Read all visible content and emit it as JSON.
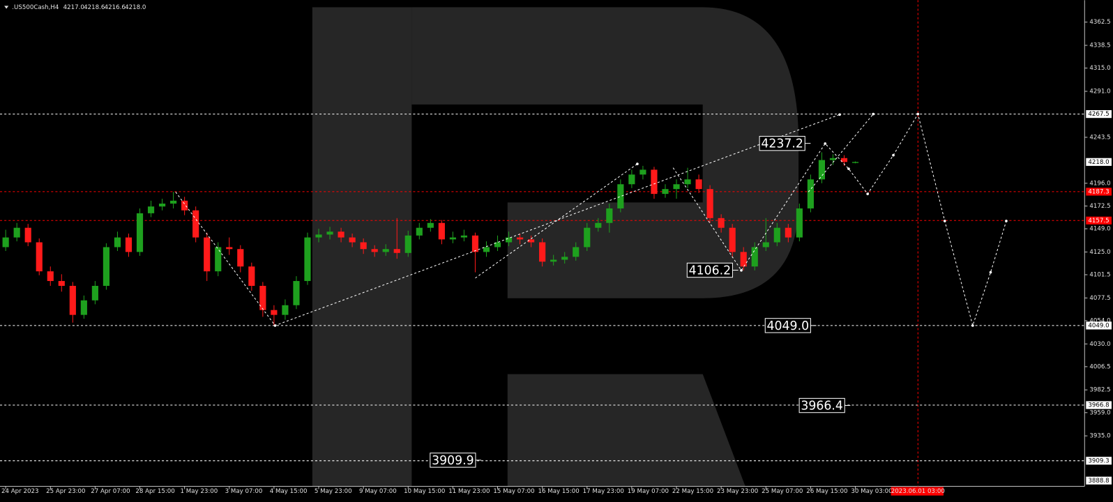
{
  "chart_data": {
    "type": "candlestick",
    "header": {
      "symbol": ".US500Cash,H4",
      "ohlc": [
        "4217.0",
        "4218.6",
        "4216.6",
        "4218.0"
      ]
    },
    "candles": [
      [
        4130,
        4148,
        4126,
        4140
      ],
      [
        4140,
        4155,
        4136,
        4150
      ],
      [
        4150,
        4154,
        4131,
        4135
      ],
      [
        4135,
        4139,
        4101,
        4105
      ],
      [
        4105,
        4110,
        4090,
        4095
      ],
      [
        4095,
        4102,
        4084,
        4090
      ],
      [
        4090,
        4094,
        4052,
        4060
      ],
      [
        4060,
        4080,
        4056,
        4075
      ],
      [
        4075,
        4095,
        4071,
        4090
      ],
      [
        4090,
        4134,
        4086,
        4130
      ],
      [
        4130,
        4146,
        4126,
        4140
      ],
      [
        4140,
        4144,
        4120,
        4125
      ],
      [
        4125,
        4170,
        4121,
        4165
      ],
      [
        4165,
        4178,
        4161,
        4172
      ],
      [
        4172,
        4180,
        4168,
        4175
      ],
      [
        4175,
        4187,
        4170,
        4178
      ],
      [
        4178,
        4182,
        4163,
        4168
      ],
      [
        4168,
        4172,
        4135,
        4140
      ],
      [
        4140,
        4145,
        4095,
        4105
      ],
      [
        4105,
        4135,
        4100,
        4130
      ],
      [
        4130,
        4140,
        4122,
        4128
      ],
      [
        4128,
        4132,
        4104,
        4110
      ],
      [
        4110,
        4114,
        4085,
        4090
      ],
      [
        4090,
        4094,
        4058,
        4065
      ],
      [
        4065,
        4070,
        4049,
        4060
      ],
      [
        4060,
        4076,
        4055,
        4070
      ],
      [
        4070,
        4100,
        4066,
        4095
      ],
      [
        4095,
        4145,
        4091,
        4140
      ],
      [
        4140,
        4149,
        4135,
        4143
      ],
      [
        4143,
        4151,
        4138,
        4146
      ],
      [
        4146,
        4150,
        4135,
        4140
      ],
      [
        4140,
        4144,
        4130,
        4135
      ],
      [
        4135,
        4139,
        4123,
        4128
      ],
      [
        4128,
        4132,
        4120,
        4125
      ],
      [
        4125,
        4133,
        4121,
        4128
      ],
      [
        4128,
        4160,
        4118,
        4124
      ],
      [
        4124,
        4147,
        4120,
        4142
      ],
      [
        4142,
        4155,
        4138,
        4150
      ],
      [
        4150,
        4159,
        4146,
        4155
      ],
      [
        4155,
        4158,
        4133,
        4138
      ],
      [
        4138,
        4146,
        4134,
        4140
      ],
      [
        4140,
        4148,
        4136,
        4142
      ],
      [
        4142,
        4145,
        4104,
        4125
      ],
      [
        4125,
        4136,
        4120,
        4130
      ],
      [
        4130,
        4142,
        4126,
        4135
      ],
      [
        4135,
        4146,
        4131,
        4140
      ],
      [
        4140,
        4144,
        4133,
        4138
      ],
      [
        4138,
        4142,
        4130,
        4135
      ],
      [
        4135,
        4139,
        4110,
        4115
      ],
      [
        4115,
        4122,
        4111,
        4117
      ],
      [
        4117,
        4125,
        4113,
        4120
      ],
      [
        4120,
        4135,
        4116,
        4130
      ],
      [
        4130,
        4155,
        4126,
        4150
      ],
      [
        4150,
        4160,
        4146,
        4155
      ],
      [
        4155,
        4175,
        4145,
        4170
      ],
      [
        4170,
        4200,
        4166,
        4195
      ],
      [
        4195,
        4210,
        4191,
        4205
      ],
      [
        4205,
        4214,
        4200,
        4210
      ],
      [
        4210,
        4213,
        4180,
        4185
      ],
      [
        4185,
        4195,
        4181,
        4190
      ],
      [
        4190,
        4200,
        4180,
        4195
      ],
      [
        4195,
        4212,
        4191,
        4200
      ],
      [
        4200,
        4205,
        4186,
        4190
      ],
      [
        4190,
        4194,
        4155,
        4160
      ],
      [
        4160,
        4164,
        4145,
        4150
      ],
      [
        4150,
        4154,
        4120,
        4125
      ],
      [
        4125,
        4130,
        4106,
        4110
      ],
      [
        4110,
        4135,
        4106,
        4130
      ],
      [
        4130,
        4160,
        4126,
        4135
      ],
      [
        4135,
        4155,
        4131,
        4150
      ],
      [
        4150,
        4154,
        4135,
        4140
      ],
      [
        4140,
        4175,
        4136,
        4170
      ],
      [
        4170,
        4205,
        4166,
        4200
      ],
      [
        4200,
        4228,
        4196,
        4220
      ],
      [
        4220,
        4226,
        4215,
        4222
      ],
      [
        4222,
        4225,
        4214,
        4218
      ],
      [
        4217,
        4218.6,
        4216.6,
        4218
      ]
    ],
    "up_color": "#1ea01e",
    "down_color": "#ff1a1a",
    "ylim": [
      3882.9,
      4385.2
    ],
    "yticks": [
      4362.5,
      4338.5,
      {
        "value": 4315,
        "label": "4315.0"
      },
      {
        "value": 4291,
        "label": "4291.0"
      },
      4243.5,
      {
        "value": 4196,
        "label": "4196.0"
      },
      4172.5,
      {
        "value": 4149,
        "label": "4149.0"
      },
      {
        "value": 4125,
        "label": "4125.0"
      },
      4101.5,
      4077.5,
      {
        "value": 4054,
        "label": "4054.0"
      },
      {
        "value": 4030,
        "label": "4030.0"
      },
      4006.5,
      3982.5,
      {
        "value": 3959,
        "label": "3959.0"
      },
      {
        "value": 3935,
        "label": "3935.0"
      }
    ],
    "levels": [
      {
        "value": 4267.5,
        "label": "4267.5",
        "color": "#ffffff",
        "line": true
      },
      {
        "value": 4218,
        "label": "4218.0",
        "color": "#ffffff",
        "line": false
      },
      {
        "value": 4187.3,
        "label": "4187.3",
        "color": "#ff0000",
        "line": true
      },
      {
        "value": 4157.5,
        "label": "4157.5",
        "color": "#ff0000",
        "line": true
      },
      {
        "value": 4049,
        "label": "4049.0",
        "color": "#ffffff",
        "line": true
      },
      {
        "value": 3966.8,
        "label": "3966.8",
        "color": "#ffffff",
        "line": true
      },
      {
        "value": 3909.3,
        "label": "3909.3",
        "color": "#ffffff",
        "line": true
      },
      {
        "value": 3888.8,
        "label": "3888.8",
        "color": "#ffffff",
        "line": false
      }
    ],
    "price_labels": [
      4237.2,
      4106.2,
      {
        "value": 4049,
        "label": "4049.0"
      },
      3966.4,
      3909.9
    ],
    "forecast": [
      [
        [
          15.2,
          4187
        ],
        [
          24.1,
          4049
        ],
        [
          74.6,
          4267
        ]
      ],
      [
        [
          42,
          4098
        ],
        [
          56.5,
          4216
        ]
      ],
      [
        [
          59.7,
          4212
        ],
        [
          65.8,
          4106
        ],
        [
          73.3,
          4237
        ],
        [
          75.4,
          4211
        ],
        [
          77.1,
          4185
        ],
        [
          79.4,
          4225
        ],
        [
          81.6,
          4267.5
        ],
        [
          84,
          4157
        ],
        [
          86.5,
          4049
        ],
        [
          88.1,
          4104
        ],
        [
          89.5,
          4157
        ]
      ],
      [
        [
          71.8,
          4187
        ],
        [
          77.6,
          4267.5
        ]
      ]
    ],
    "xticks": [
      {
        "value": 0,
        "label": "24 Apr 2023"
      },
      {
        "value": 4,
        "label": "25 Apr 23:00"
      },
      {
        "value": 8,
        "label": "27 Apr 07:00"
      },
      {
        "value": 12,
        "label": "28 Apr 15:00"
      },
      {
        "value": 16,
        "label": "1 May 23:00"
      },
      {
        "value": 20,
        "label": "3 May 07:00"
      },
      {
        "value": 24,
        "label": "4 May 15:00"
      },
      {
        "value": 28,
        "label": "5 May 23:00"
      },
      {
        "value": 32,
        "label": "9 May 07:00"
      },
      {
        "value": 36,
        "label": "10 May 15:00"
      },
      {
        "value": 40,
        "label": "11 May 23:00"
      },
      {
        "value": 44,
        "label": "15 May 07:00"
      },
      {
        "value": 48,
        "label": "16 May 15:00"
      },
      {
        "value": 52,
        "label": "17 May 23:00"
      },
      {
        "value": 56,
        "label": "19 May 07:00"
      },
      {
        "value": 60,
        "label": "22 May 15:00"
      },
      {
        "value": 64,
        "label": "23 May 23:00"
      },
      {
        "value": 68,
        "label": "25 May 07:00"
      },
      {
        "value": 72,
        "label": "26 May 15:00"
      },
      {
        "value": 76,
        "label": "30 May 03:00"
      }
    ],
    "cursor": {
      "value": 81.6,
      "label": "2023.06.01 03:00"
    }
  }
}
